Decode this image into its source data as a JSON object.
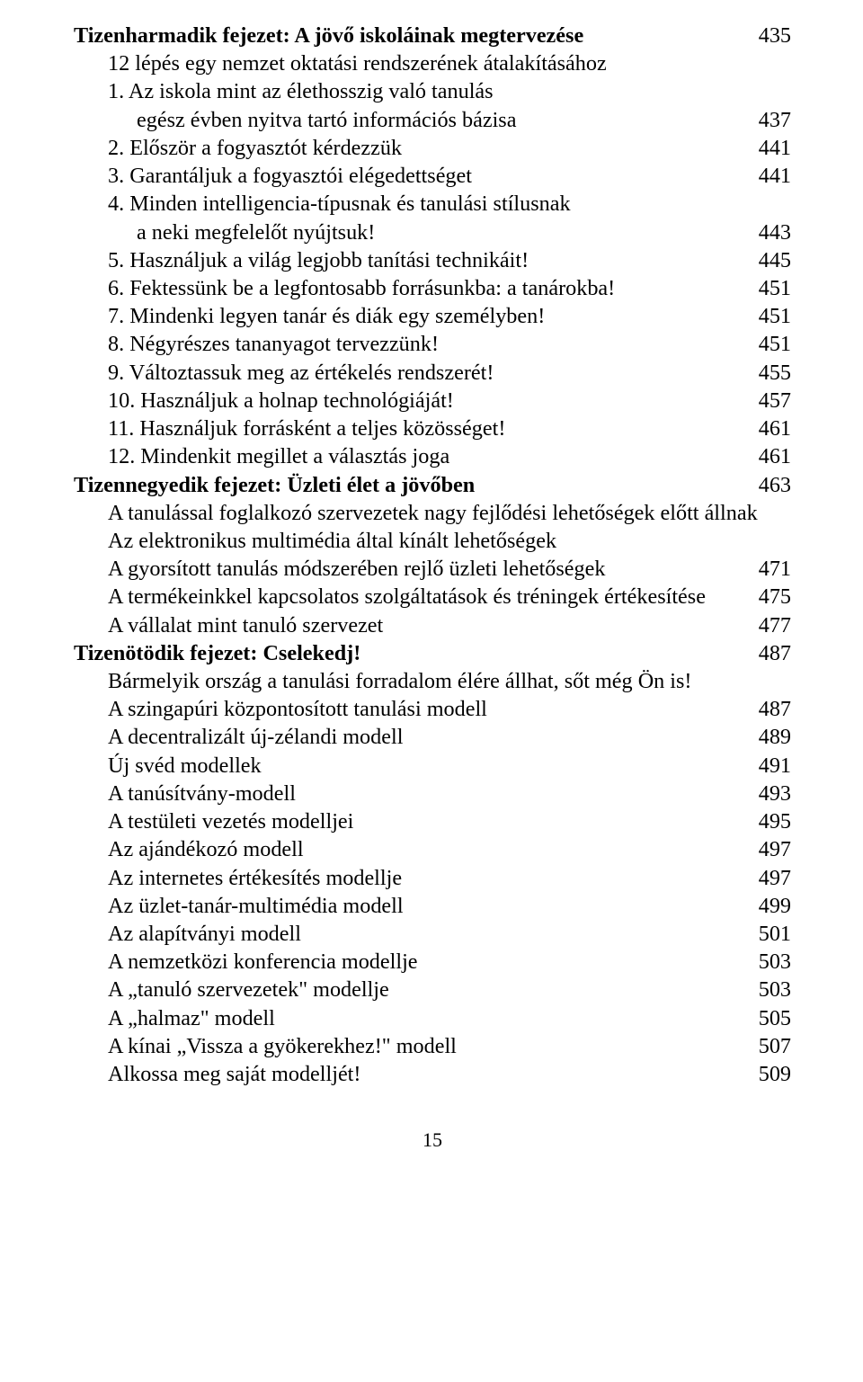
{
  "chapter13": {
    "title": "Tizenharmadik fejezet: A jövő iskoláinak megtervezése",
    "page": "435",
    "subtitle": "12 lépés egy nemzet oktatási rendszerének átalakításához",
    "items": [
      {
        "n": "1.",
        "l1": "Az iskola mint az élethosszig való tanulás",
        "l2": "egész évben nyitva tartó információs bázisa",
        "p": "437"
      },
      {
        "n": "2.",
        "l1": "Először a fogyasztót kérdezzük",
        "p": "441"
      },
      {
        "n": "3.",
        "l1": "Garantáljuk a fogyasztói elégedettséget",
        "p": "441"
      },
      {
        "n": "4.",
        "l1": "Minden intelligencia-típusnak és tanulási stílusnak",
        "l2": "a neki megfelelőt nyújtsuk!",
        "p": "443"
      },
      {
        "n": "5.",
        "l1": "Használjuk a világ legjobb tanítási technikáit!",
        "p": "445"
      },
      {
        "n": "6.",
        "l1": "Fektessünk be a legfontosabb forrásunkba: a tanárokba!",
        "p": "451"
      },
      {
        "n": "7.",
        "l1": "Mindenki legyen tanár és diák egy személyben!",
        "p": "451"
      },
      {
        "n": "8.",
        "l1": "Négyrészes tananyagot tervezzünk!",
        "p": "451"
      },
      {
        "n": "9.",
        "l1": "Változtassuk meg az értékelés rendszerét!",
        "p": "455"
      },
      {
        "n": "10.",
        "l1": "Használjuk a holnap technológiáját!",
        "p": "457"
      },
      {
        "n": "11.",
        "l1": "Használjuk forrásként a teljes közösséget!",
        "p": "461"
      },
      {
        "n": "12.",
        "l1": "Mindenkit megillet a választás joga",
        "p": "461"
      }
    ]
  },
  "chapter14": {
    "title": "Tizennegyedik fejezet: Üzleti élet a jövőben",
    "page": "463",
    "lines": [
      {
        "t": "A tanulással foglalkozó szervezetek nagy fejlődési lehetőségek előtt állnak"
      },
      {
        "t": "Az elektronikus multimédia által kínált lehetőségek"
      },
      {
        "t": "A gyorsított tanulás módszerében rejlő üzleti lehetőségek",
        "p": "471"
      },
      {
        "t": "A termékeinkkel kapcsolatos szolgáltatások és tréningek értékesítése",
        "p": "475"
      },
      {
        "t": "A vállalat mint tanuló szervezet",
        "p": "477"
      }
    ]
  },
  "chapter15": {
    "title": "Tizenötödik fejezet: Cselekedj!",
    "page": "487",
    "intro": "Bármelyik ország a tanulási forradalom élére állhat, sőt még Ön is!",
    "lines": [
      {
        "t": "A szingapúri központosított tanulási modell",
        "p": "487"
      },
      {
        "t": "A decentralizált új-zélandi modell",
        "p": "489"
      },
      {
        "t": "Új svéd modellek",
        "p": "491"
      },
      {
        "t": "A tanúsítvány-modell",
        "p": "493"
      },
      {
        "t": "A testületi vezetés modelljei",
        "p": "495"
      },
      {
        "t": "Az ajándékozó modell",
        "p": "497"
      },
      {
        "t": "Az internetes értékesítés modellje",
        "p": "497"
      },
      {
        "t": "Az üzlet-tanár-multimédia modell",
        "p": "499"
      },
      {
        "t": "Az alapítványi modell",
        "p": "501"
      },
      {
        "t": "A nemzetközi konferencia modellje",
        "p": "503"
      },
      {
        "t": "A „tanuló szervezetek\" modellje",
        "p": "503"
      },
      {
        "t": "A „halmaz\" modell",
        "p": "505"
      },
      {
        "t": "A kínai „Vissza a gyökerekhez!\" modell",
        "p": "507"
      },
      {
        "t": "Alkossa meg saját modelljét!",
        "p": "509"
      }
    ]
  },
  "pageNumber": "15"
}
